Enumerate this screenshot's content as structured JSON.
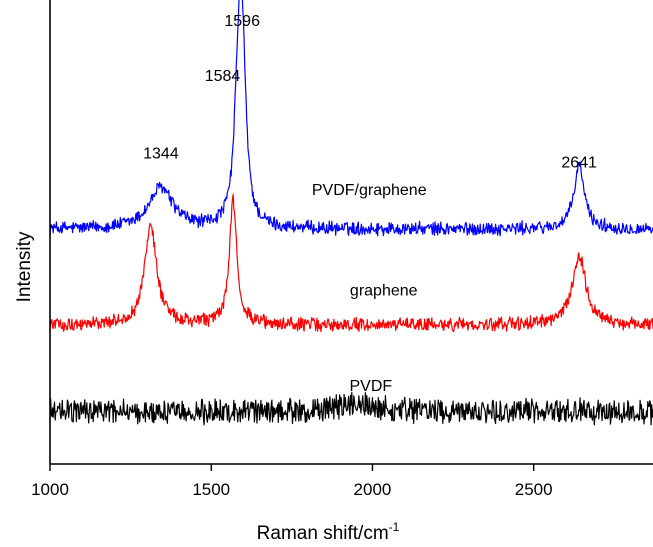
{
  "chart_data": {
    "type": "line",
    "xlabel": "Raman shift/cm",
    "xlabel_superscript": "-1",
    "ylabel": "Intensity",
    "xlim": [
      1000,
      2870
    ],
    "ylim": [
      0,
      100
    ],
    "x_ticks": [
      1000,
      1500,
      2000,
      2500
    ],
    "grid": false,
    "legend": "none",
    "series": [
      {
        "name": "PVDF/graphene",
        "color": "#0000ff",
        "baseline": 51.5,
        "noise": 1.3,
        "peaks": [
          {
            "x": 1344,
            "height": 9,
            "width": 45
          },
          {
            "x": 1584,
            "height": 26,
            "width": 14
          },
          {
            "x": 1596,
            "height": 36,
            "width": 14
          },
          {
            "x": 2641,
            "height": 14,
            "width": 19
          }
        ]
      },
      {
        "name": "graphene",
        "color": "#ff0000",
        "baseline": 30.5,
        "noise": 1.3,
        "peaks": [
          {
            "x": 1312,
            "height": 22,
            "width": 22
          },
          {
            "x": 1568,
            "height": 27,
            "width": 14
          },
          {
            "x": 2641,
            "height": 15,
            "width": 26
          }
        ]
      },
      {
        "name": "PVDF",
        "color": "#000000",
        "baseline": 11.5,
        "noise": 2.4,
        "peaks": [
          {
            "x": 1950,
            "height": 1.5,
            "width": 60
          }
        ]
      }
    ],
    "annotations": [
      {
        "text": "1596",
        "x": 1596,
        "y": 96
      },
      {
        "text": "1584",
        "x": 1535,
        "y": 84
      },
      {
        "text": "1344",
        "x": 1344,
        "y": 67
      },
      {
        "text": "2641",
        "x": 2641,
        "y": 65
      },
      {
        "text": "PVDF/graphene",
        "x": 1990,
        "y": 59
      },
      {
        "text": "graphene",
        "x": 2035,
        "y": 37
      },
      {
        "text": "PVDF",
        "x": 1995,
        "y": 16
      }
    ]
  }
}
